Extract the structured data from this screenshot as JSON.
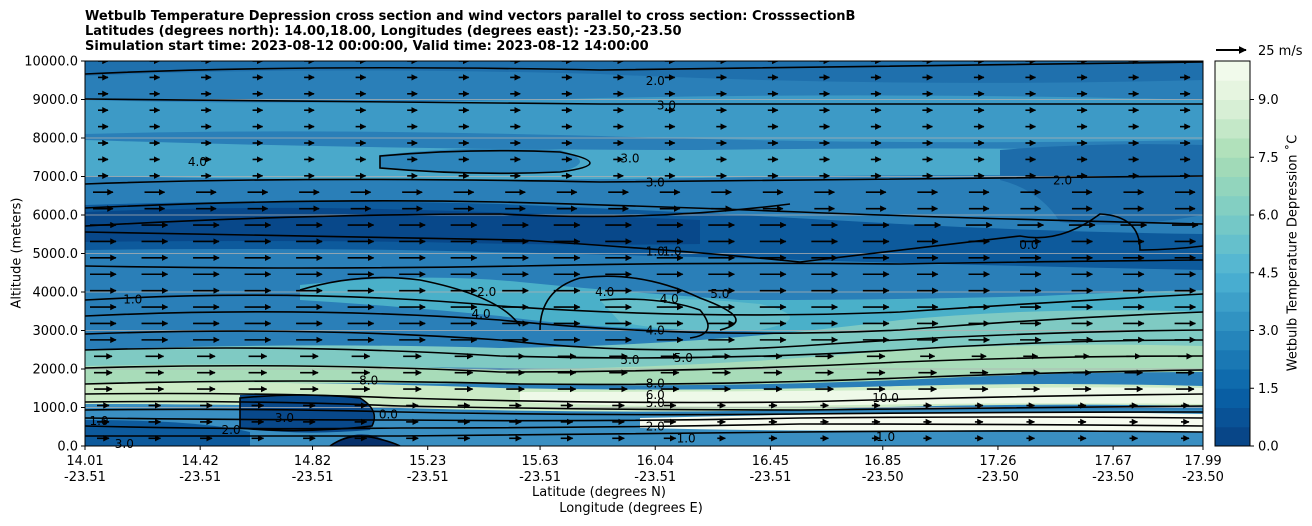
{
  "chart_data": {
    "type": "heatmap",
    "title_lines": [
      "Wetbulb Temperature Depression cross section and wind vectors parallel to cross section: CrosssectionB",
      "Latitudes (degrees north): 14.00,18.00, Longitudes (degrees east): -23.50,-23.50",
      "Simulation start time: 2023-08-12 00:00:00, Valid time: 2023-08-12 14:00:00"
    ],
    "ylabel": "Altitude (meters)",
    "xlabel_line1": "Latitude (degrees N)",
    "xlabel_line2": "Longitude (degrees E)",
    "ylim": [
      0,
      10000
    ],
    "yticks": [
      "0.0",
      "1000.0",
      "2000.0",
      "3000.0",
      "4000.0",
      "5000.0",
      "6000.0",
      "7000.0",
      "8000.0",
      "9000.0",
      "10000.0"
    ],
    "xlim": [
      14.01,
      17.99
    ],
    "xticks": [
      {
        "lat": "14.01",
        "lon": "-23.51"
      },
      {
        "lat": "14.42",
        "lon": "-23.51"
      },
      {
        "lat": "14.82",
        "lon": "-23.51"
      },
      {
        "lat": "15.23",
        "lon": "-23.51"
      },
      {
        "lat": "15.63",
        "lon": "-23.51"
      },
      {
        "lat": "16.04",
        "lon": "-23.51"
      },
      {
        "lat": "16.45",
        "lon": "-23.51"
      },
      {
        "lat": "16.85",
        "lon": "-23.50"
      },
      {
        "lat": "17.26",
        "lon": "-23.50"
      },
      {
        "lat": "17.67",
        "lon": "-23.50"
      },
      {
        "lat": "17.99",
        "lon": "-23.50"
      }
    ],
    "colorbar": {
      "label": "Wetbulb Temperature Depression ˚C",
      "range": [
        0,
        10
      ],
      "ticks": [
        "0.0",
        "1.5",
        "3.0",
        "4.5",
        "6.0",
        "7.5",
        "9.0"
      ],
      "tick_values": [
        0,
        1.5,
        3.0,
        4.5,
        6.0,
        7.5,
        9.0
      ]
    },
    "quiver_key": {
      "label": "25 m/s",
      "speed": 25
    },
    "contour_labels": [
      {
        "text": "2.0",
        "lat": 16.04,
        "alt": 9480
      },
      {
        "text": "3.0",
        "lat": 16.08,
        "alt": 8840
      },
      {
        "text": "3.0",
        "lat": 16.04,
        "alt": 6850
      },
      {
        "text": "1.0",
        "lat": 16.04,
        "alt": 5050
      },
      {
        "text": "1.0",
        "lat": 16.1,
        "alt": 5050
      },
      {
        "text": "4.0",
        "lat": 16.04,
        "alt": 3000
      },
      {
        "text": "5.0",
        "lat": 15.95,
        "alt": 2240
      },
      {
        "text": "5.0",
        "lat": 16.14,
        "alt": 2280
      },
      {
        "text": "8.0",
        "lat": 16.04,
        "alt": 1620
      },
      {
        "text": "6.0",
        "lat": 16.04,
        "alt": 1330
      },
      {
        "text": "5.0",
        "lat": 16.04,
        "alt": 1120
      },
      {
        "text": "2.0",
        "lat": 16.04,
        "alt": 510
      },
      {
        "text": "1.0",
        "lat": 16.15,
        "alt": 200
      },
      {
        "text": "0.0",
        "lat": 15.09,
        "alt": 820
      },
      {
        "text": "3.0",
        "lat": 14.72,
        "alt": 730
      },
      {
        "text": "8.0",
        "lat": 15.02,
        "alt": 1700
      },
      {
        "text": "2.0",
        "lat": 15.44,
        "alt": 4000
      },
      {
        "text": "4.0",
        "lat": 15.86,
        "alt": 4000
      },
      {
        "text": "4.0",
        "lat": 16.09,
        "alt": 3820
      },
      {
        "text": "5.0",
        "lat": 16.27,
        "alt": 3950
      },
      {
        "text": "4.0",
        "lat": 15.42,
        "alt": 3430
      },
      {
        "text": "4.0",
        "lat": 14.41,
        "alt": 7380
      },
      {
        "text": "3.0",
        "lat": 15.95,
        "alt": 7470
      },
      {
        "text": "2.0",
        "lat": 17.49,
        "alt": 6900
      },
      {
        "text": "1.0",
        "lat": 14.18,
        "alt": 3800
      },
      {
        "text": "0.0",
        "lat": 17.37,
        "alt": 5220
      },
      {
        "text": "10.0",
        "lat": 16.86,
        "alt": 1250
      },
      {
        "text": "2.0",
        "lat": 14.53,
        "alt": 420
      },
      {
        "text": "1.0",
        "lat": 16.86,
        "alt": 240
      },
      {
        "text": "3.0",
        "lat": 14.15,
        "alt": 50
      },
      {
        "text": "1.0",
        "lat": 14.06,
        "alt": 650
      }
    ],
    "grid": "horizontal"
  }
}
